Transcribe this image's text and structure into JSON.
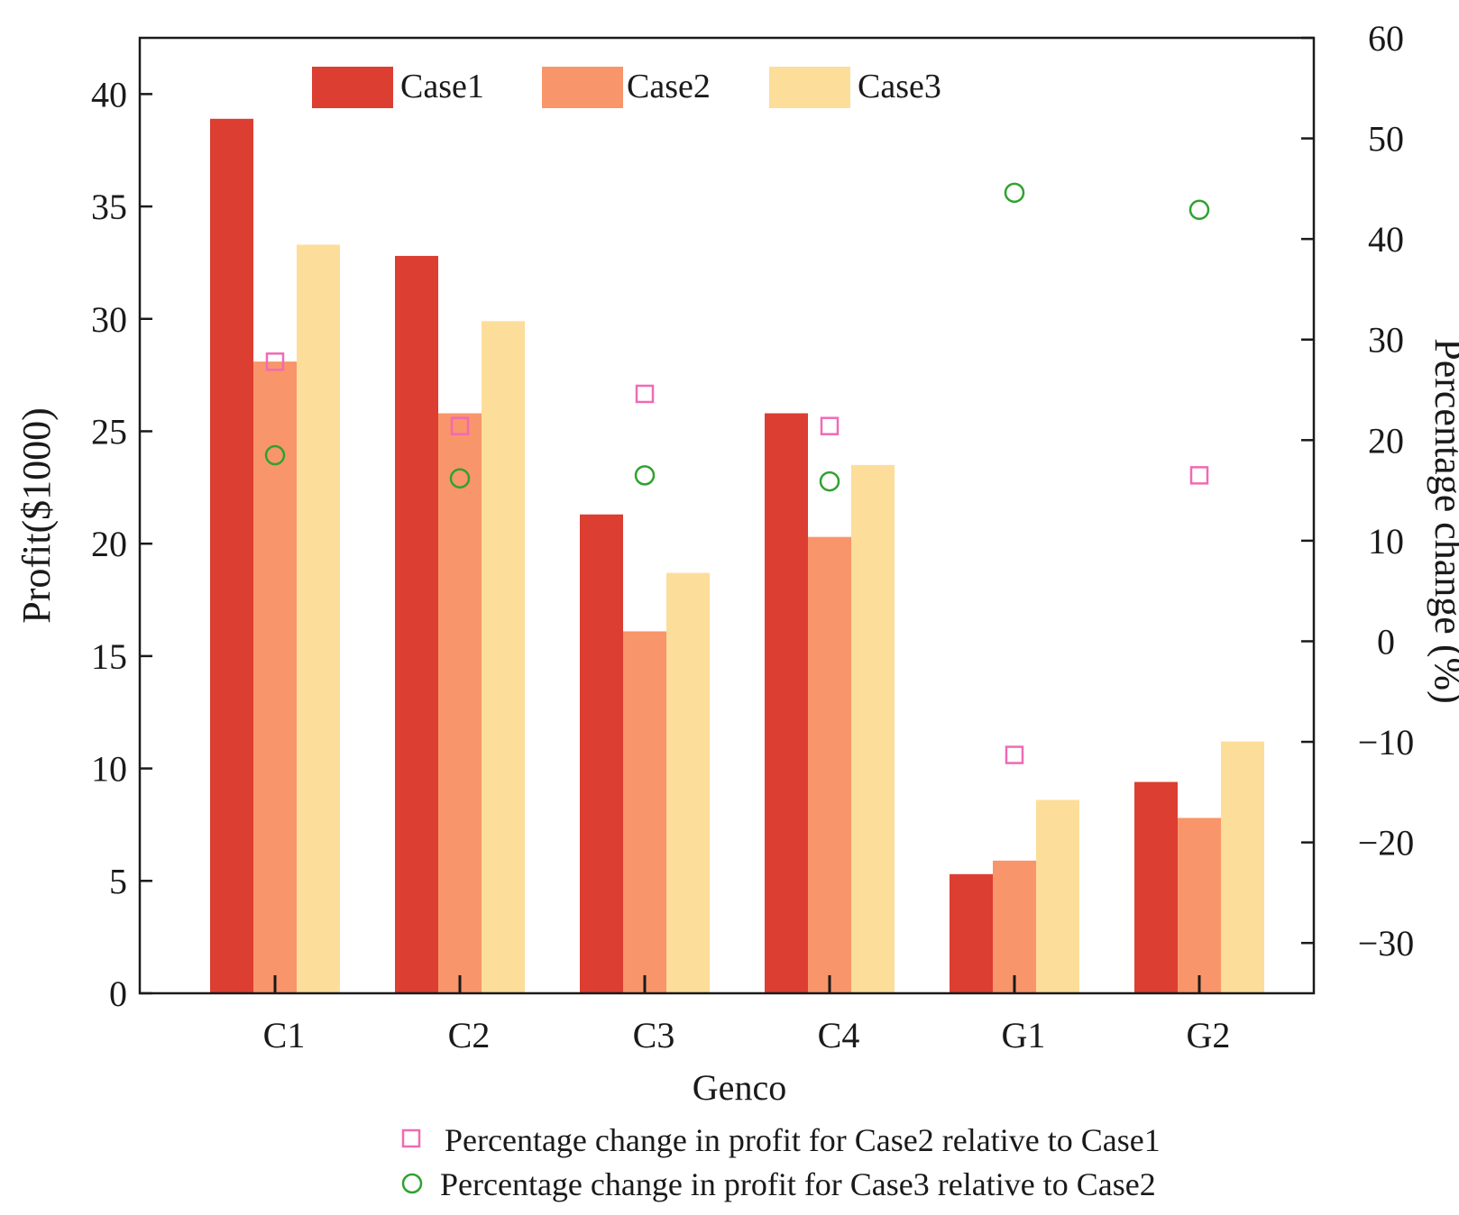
{
  "chart_data": {
    "type": "bar",
    "xlabel": "Genco",
    "ylabel": "Profit($1000)",
    "y2label": "Percentage change (%)",
    "categories": [
      "C1",
      "C2",
      "C3",
      "C4",
      "G1",
      "G2"
    ],
    "ylim": [
      0,
      42.5
    ],
    "yticks": [
      0,
      5,
      10,
      15,
      20,
      25,
      30,
      35,
      40
    ],
    "y2lim": [
      -35,
      60
    ],
    "y2ticks": [
      -30,
      -20,
      -10,
      0,
      10,
      20,
      30,
      40,
      50,
      60
    ],
    "y2tick_labels": [
      "−30",
      "−20",
      "−10",
      "0",
      "10",
      "20",
      "30",
      "40",
      "50",
      "60"
    ],
    "series": [
      {
        "name": "Case1",
        "color": "#dc3e32",
        "values": [
          38.9,
          32.8,
          21.3,
          25.8,
          5.3,
          9.4
        ]
      },
      {
        "name": "Case2",
        "color": "#f9956a",
        "values": [
          28.1,
          25.8,
          16.1,
          20.3,
          5.9,
          7.8
        ]
      },
      {
        "name": "Case3",
        "color": "#fddd9a",
        "values": [
          33.3,
          29.9,
          18.7,
          23.5,
          8.6,
          11.2
        ]
      }
    ],
    "scatter": [
      {
        "name": "Percentage change in profit for Case2 relative to Case1",
        "marker": "square",
        "color": "#f06ab4",
        "axis": "right",
        "values": [
          27.8,
          21.4,
          24.6,
          21.4,
          -11.3,
          16.5
        ]
      },
      {
        "name": "Percentage change in profit for Case3 relative to Case2",
        "marker": "circle",
        "color": "#2fa22f",
        "axis": "right",
        "values": [
          18.5,
          16.2,
          16.5,
          15.9,
          44.6,
          42.9
        ]
      }
    ],
    "legend_top": "top-left",
    "legend_bottom": "bottom"
  }
}
